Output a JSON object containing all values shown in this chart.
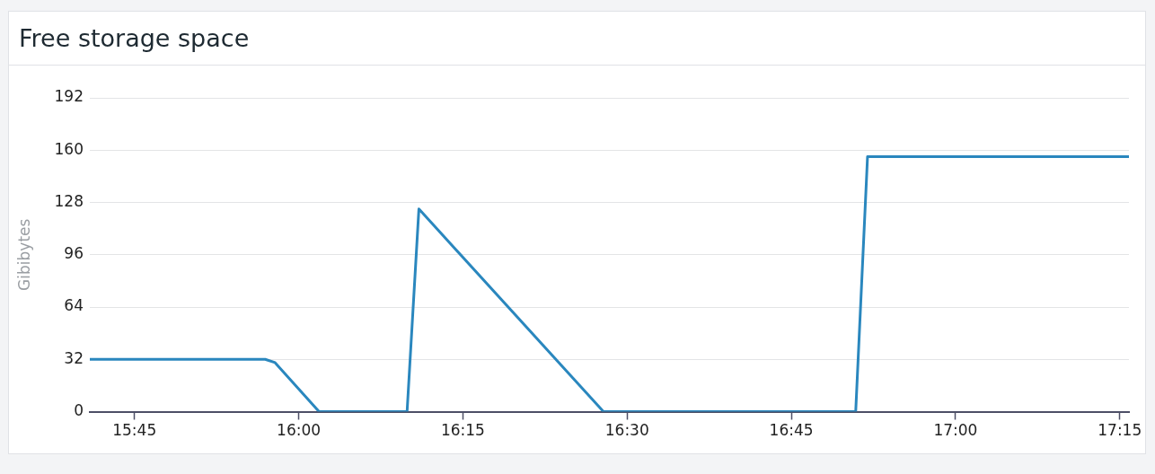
{
  "chart_data": {
    "type": "line",
    "title": "Free storage space",
    "ylabel": "Gibibytes",
    "x": [
      15.682,
      15.949,
      15.964,
      16.031,
      16.165,
      16.183,
      16.464,
      16.848,
      16.866,
      17.264
    ],
    "series": [
      {
        "color": "#2a87be",
        "values": [
          32,
          32,
          30,
          0,
          0,
          124,
          0,
          0,
          156,
          156
        ]
      }
    ],
    "xlim": [
      15.682,
      17.264
    ],
    "xticks": [
      {
        "value": 15.75,
        "label": "15:45"
      },
      {
        "value": 16,
        "label": "16:00"
      },
      {
        "value": 16.25,
        "label": "16:15"
      },
      {
        "value": 16.5,
        "label": "16:30"
      },
      {
        "value": 16.75,
        "label": "16:45"
      },
      {
        "value": 17,
        "label": "17:00"
      },
      {
        "value": 17.25,
        "label": "17:15"
      }
    ],
    "ylim": [
      0,
      192
    ],
    "yticks": [
      0,
      32,
      64,
      96,
      128,
      160,
      192
    ],
    "grid": "y"
  }
}
